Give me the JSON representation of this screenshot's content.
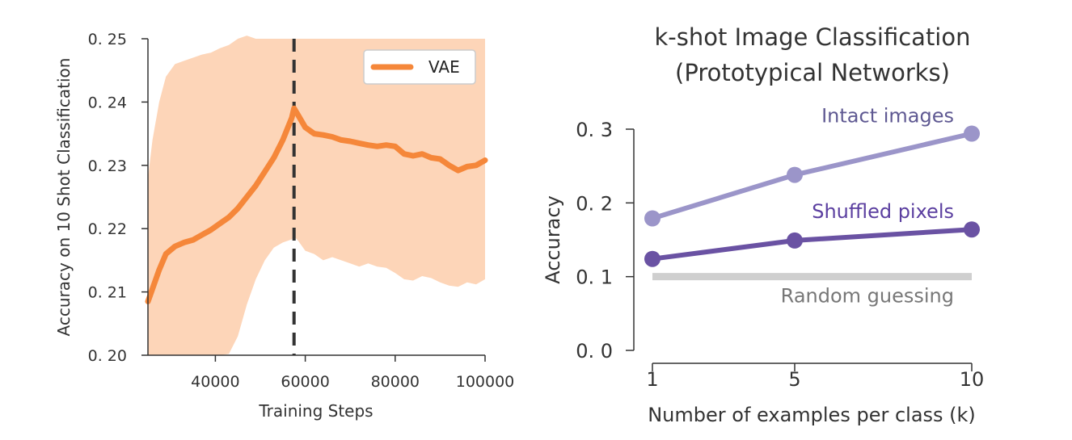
{
  "chart_data": [
    {
      "type": "line",
      "title": "",
      "xlabel": "Training Steps",
      "ylabel": "Accuracy on 10 Shot Classification",
      "xlim": [
        25000,
        100000
      ],
      "ylim": [
        0.2,
        0.25
      ],
      "xticks": [
        40000,
        60000,
        80000,
        100000
      ],
      "xtick_labels": [
        "40000",
        "60000",
        "80000",
        "100000"
      ],
      "yticks": [
        0.2,
        0.21,
        0.22,
        0.23,
        0.24,
        0.25
      ],
      "ytick_labels": [
        "0. 20",
        "0. 21",
        "0. 22",
        "0. 23",
        "0. 24",
        "0. 25"
      ],
      "grid": false,
      "legend_position": "top-right",
      "vline_x": 57500,
      "series": [
        {
          "name": "VAE",
          "color": "#f5873a",
          "band_color": "#fdd5b8",
          "x": [
            25000,
            26000,
            27500,
            29000,
            31000,
            33000,
            35000,
            37000,
            39000,
            41000,
            43000,
            45000,
            47000,
            49000,
            51000,
            53000,
            55000,
            57000,
            57500,
            58500,
            60000,
            62000,
            64000,
            66000,
            68000,
            70000,
            72000,
            74000,
            76000,
            78000,
            80000,
            82000,
            84000,
            86000,
            88000,
            90000,
            92000,
            94000,
            96000,
            98000,
            100000
          ],
          "y": [
            0.2085,
            0.2105,
            0.2135,
            0.216,
            0.2172,
            0.2178,
            0.2182,
            0.219,
            0.2198,
            0.2208,
            0.2218,
            0.2232,
            0.225,
            0.2268,
            0.229,
            0.2312,
            0.234,
            0.2375,
            0.239,
            0.2378,
            0.236,
            0.235,
            0.2348,
            0.2345,
            0.234,
            0.2338,
            0.2335,
            0.2332,
            0.233,
            0.2332,
            0.233,
            0.2318,
            0.2315,
            0.2318,
            0.2312,
            0.231,
            0.23,
            0.2292,
            0.2298,
            0.23,
            0.2308
          ],
          "upper": [
            0.228,
            0.234,
            0.24,
            0.244,
            0.246,
            0.2465,
            0.247,
            0.2475,
            0.2478,
            0.2485,
            0.249,
            0.25,
            0.2505,
            0.25,
            0.25,
            0.25,
            0.25,
            0.25,
            0.25,
            0.25,
            0.25,
            0.25,
            0.25,
            0.25,
            0.25,
            0.25,
            0.25,
            0.25,
            0.25,
            0.25,
            0.25,
            0.25,
            0.25,
            0.25,
            0.25,
            0.25,
            0.25,
            0.25,
            0.25,
            0.25,
            0.25
          ],
          "lower": [
            0.2,
            0.2,
            0.2,
            0.2,
            0.2,
            0.2,
            0.2,
            0.2,
            0.2,
            0.2,
            0.2002,
            0.203,
            0.208,
            0.212,
            0.215,
            0.217,
            0.2178,
            0.2183,
            0.2188,
            0.218,
            0.2165,
            0.216,
            0.215,
            0.2155,
            0.215,
            0.2145,
            0.214,
            0.2145,
            0.214,
            0.2138,
            0.213,
            0.212,
            0.2118,
            0.2125,
            0.2122,
            0.2115,
            0.211,
            0.2108,
            0.2115,
            0.2112,
            0.212
          ]
        }
      ]
    },
    {
      "type": "line",
      "title": "k-shot Image Classification\n(Prototypical Networks)",
      "title_lines": [
        "k-shot Image Classification",
        "(Prototypical Networks)"
      ],
      "xlabel": "Number of examples per class (k)",
      "ylabel": "Accuracy",
      "categories": [
        "1",
        "5",
        "10"
      ],
      "ylim": [
        0.0,
        0.3
      ],
      "yticks": [
        0.0,
        0.1,
        0.2,
        0.3
      ],
      "ytick_labels": [
        "0. 0",
        "0. 1",
        "0. 2",
        "0. 3"
      ],
      "grid": false,
      "series": [
        {
          "name": "Intact images",
          "color": "#9b95c9",
          "label_color": "#5f5992",
          "values": [
            0.179,
            0.238,
            0.294
          ]
        },
        {
          "name": "Shuffled pixels",
          "color": "#6a52a3",
          "label_color": "#5b3fa0",
          "values": [
            0.124,
            0.149,
            0.164
          ]
        }
      ],
      "baseline": {
        "name": "Random guessing",
        "value": 0.1,
        "color": "#cfcfcf",
        "label_color": "#777777"
      }
    }
  ]
}
